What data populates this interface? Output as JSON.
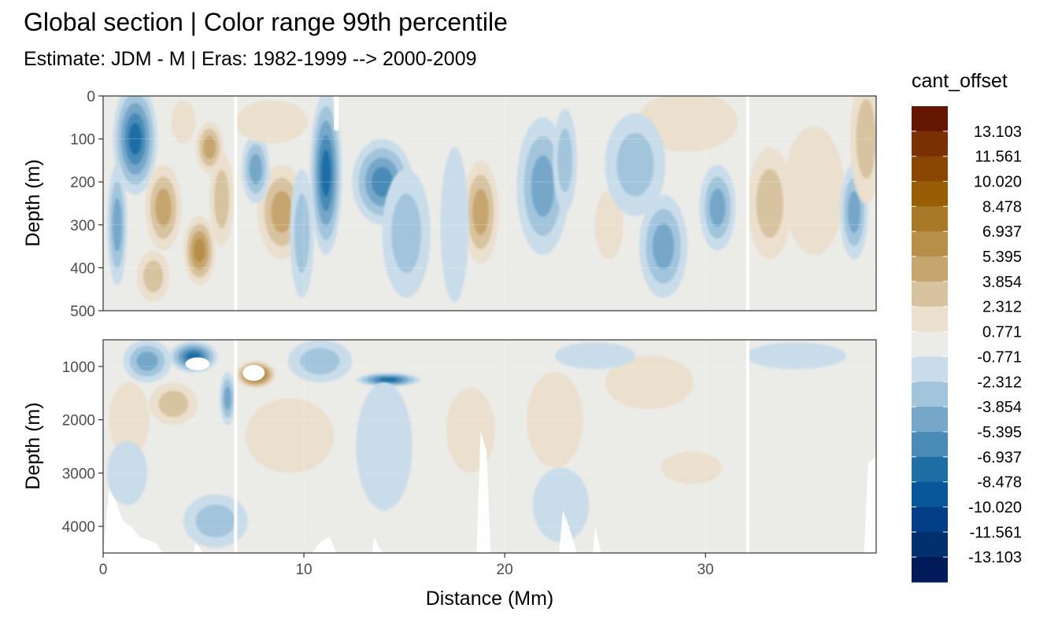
{
  "chart_data": {
    "type": "heatmap",
    "title": "Global section | Color range 99th percentile",
    "subtitle": "Estimate: JDM - M | Eras: 1982-1999 --> 2000-2009",
    "xlabel": "Distance (Mm)",
    "ylabel": "Depth (m)",
    "xlim": [
      0,
      38.5
    ],
    "x_ticks": [
      0,
      10,
      20,
      30
    ],
    "x_tick_labels": [
      "0",
      "10",
      "20",
      "30"
    ],
    "panels": [
      {
        "ylim": [
          0,
          500
        ],
        "y_ticks": [
          0,
          100,
          200,
          300,
          400,
          500
        ],
        "y_tick_labels": [
          "0",
          "100",
          "200",
          "300",
          "400",
          "500"
        ]
      },
      {
        "ylim": [
          500,
          4500
        ],
        "y_ticks": [
          1000,
          2000,
          3000,
          4000
        ],
        "y_tick_labels": [
          "1000",
          "2000",
          "3000",
          "4000"
        ]
      }
    ],
    "section_gaps_mm": [
      6.6,
      32.1
    ],
    "legend": {
      "title": "cant_offset",
      "labels": [
        "13.103",
        "11.561",
        "10.020",
        "8.478",
        "6.937",
        "5.395",
        "3.854",
        "2.312",
        "0.771",
        "-0.771",
        "-2.312",
        "-3.854",
        "-5.395",
        "-6.937",
        "-8.478",
        "-10.020",
        "-11.561",
        "-13.103"
      ],
      "colors": [
        "#651600",
        "#7a3003",
        "#8a4703",
        "#985e05",
        "#a87926",
        "#b78f48",
        "#c6a66e",
        "#d8c3a0",
        "#ebdfcd",
        "#ebebe8",
        "#c9dcea",
        "#a2c5dc",
        "#76a7c9",
        "#4a8bb8",
        "#1f6ea5",
        "#08579a",
        "#033f87",
        "#02306f",
        "#011a5a"
      ]
    },
    "blobs_top": [
      {
        "x": 1.6,
        "y": 100,
        "rx": 1.1,
        "ry": 130,
        "v": -7
      },
      {
        "x": 0.7,
        "y": 300,
        "rx": 0.5,
        "ry": 140,
        "v": -5
      },
      {
        "x": 3.0,
        "y": 260,
        "rx": 0.9,
        "ry": 100,
        "v": 4
      },
      {
        "x": 4.8,
        "y": 360,
        "rx": 0.8,
        "ry": 80,
        "v": 6
      },
      {
        "x": 5.9,
        "y": 240,
        "rx": 0.6,
        "ry": 110,
        "v": 3
      },
      {
        "x": 5.3,
        "y": 120,
        "rx": 0.7,
        "ry": 60,
        "v": 4
      },
      {
        "x": 4.0,
        "y": 60,
        "rx": 0.6,
        "ry": 50,
        "v": 2
      },
      {
        "x": 8.9,
        "y": 270,
        "rx": 1.2,
        "ry": 110,
        "v": 5
      },
      {
        "x": 7.6,
        "y": 170,
        "rx": 0.7,
        "ry": 80,
        "v": -5
      },
      {
        "x": 8.4,
        "y": 60,
        "rx": 1.8,
        "ry": 50,
        "v": 1.5
      },
      {
        "x": 11.1,
        "y": 180,
        "rx": 0.8,
        "ry": 190,
        "v": -8
      },
      {
        "x": 9.9,
        "y": 320,
        "rx": 0.6,
        "ry": 150,
        "v": -3
      },
      {
        "x": 13.9,
        "y": 200,
        "rx": 1.5,
        "ry": 100,
        "v": -6
      },
      {
        "x": 15.1,
        "y": 320,
        "rx": 1.2,
        "ry": 150,
        "v": -3
      },
      {
        "x": 18.8,
        "y": 270,
        "rx": 0.9,
        "ry": 120,
        "v": 4
      },
      {
        "x": 17.5,
        "y": 300,
        "rx": 0.7,
        "ry": 180,
        "v": -2
      },
      {
        "x": 21.9,
        "y": 210,
        "rx": 1.3,
        "ry": 160,
        "v": -4
      },
      {
        "x": 23.0,
        "y": 150,
        "rx": 0.6,
        "ry": 120,
        "v": -3
      },
      {
        "x": 25.2,
        "y": 300,
        "rx": 0.7,
        "ry": 80,
        "v": 2
      },
      {
        "x": 27.9,
        "y": 350,
        "rx": 1.2,
        "ry": 120,
        "v": -4
      },
      {
        "x": 30.6,
        "y": 260,
        "rx": 0.9,
        "ry": 100,
        "v": -5
      },
      {
        "x": 29.1,
        "y": 60,
        "rx": 2.5,
        "ry": 70,
        "v": 1.5
      },
      {
        "x": 33.2,
        "y": 250,
        "rx": 1.1,
        "ry": 130,
        "v": 2.5
      },
      {
        "x": 35.4,
        "y": 220,
        "rx": 1.5,
        "ry": 150,
        "v": 1.5
      },
      {
        "x": 37.4,
        "y": 270,
        "rx": 0.7,
        "ry": 110,
        "v": -5
      },
      {
        "x": 38.0,
        "y": 100,
        "rx": 0.8,
        "ry": 150,
        "v": 3
      },
      {
        "x": 26.5,
        "y": 160,
        "rx": 1.5,
        "ry": 120,
        "v": -2.5
      },
      {
        "x": 2.5,
        "y": 420,
        "rx": 0.8,
        "ry": 60,
        "v": 2.5
      }
    ],
    "blobs_bottom": [
      {
        "x": 4.5,
        "y": 820,
        "rx": 1.2,
        "ry": 300,
        "v": -8
      },
      {
        "x": 7.6,
        "y": 1150,
        "rx": 1.0,
        "ry": 260,
        "v": 10
      },
      {
        "x": 2.2,
        "y": 900,
        "rx": 1.2,
        "ry": 400,
        "v": -4
      },
      {
        "x": 1.3,
        "y": 2000,
        "rx": 1.0,
        "ry": 700,
        "v": 2
      },
      {
        "x": 3.5,
        "y": 1700,
        "rx": 1.2,
        "ry": 400,
        "v": 2.5
      },
      {
        "x": 6.2,
        "y": 1600,
        "rx": 0.4,
        "ry": 500,
        "v": -5
      },
      {
        "x": 9.3,
        "y": 2300,
        "rx": 2.2,
        "ry": 700,
        "v": 2
      },
      {
        "x": 10.8,
        "y": 900,
        "rx": 1.6,
        "ry": 400,
        "v": -2.5
      },
      {
        "x": 14.2,
        "y": 1250,
        "rx": 1.6,
        "ry": 130,
        "v": -7
      },
      {
        "x": 14.0,
        "y": 2500,
        "rx": 1.4,
        "ry": 1200,
        "v": -1.5
      },
      {
        "x": 5.6,
        "y": 3900,
        "rx": 1.6,
        "ry": 500,
        "v": -3
      },
      {
        "x": 1.2,
        "y": 3000,
        "rx": 1.0,
        "ry": 600,
        "v": -1.5
      },
      {
        "x": 18.3,
        "y": 2200,
        "rx": 1.2,
        "ry": 800,
        "v": 1.5
      },
      {
        "x": 22.5,
        "y": 2000,
        "rx": 1.4,
        "ry": 900,
        "v": 1.5
      },
      {
        "x": 22.8,
        "y": 3600,
        "rx": 1.4,
        "ry": 700,
        "v": -2
      },
      {
        "x": 27.2,
        "y": 1300,
        "rx": 2.2,
        "ry": 500,
        "v": 1.5
      },
      {
        "x": 29.3,
        "y": 2900,
        "rx": 1.5,
        "ry": 300,
        "v": 1.5
      },
      {
        "x": 24.5,
        "y": 800,
        "rx": 2.0,
        "ry": 250,
        "v": -1.5
      },
      {
        "x": 34.5,
        "y": 800,
        "rx": 2.5,
        "ry": 250,
        "v": -1.5
      }
    ]
  }
}
